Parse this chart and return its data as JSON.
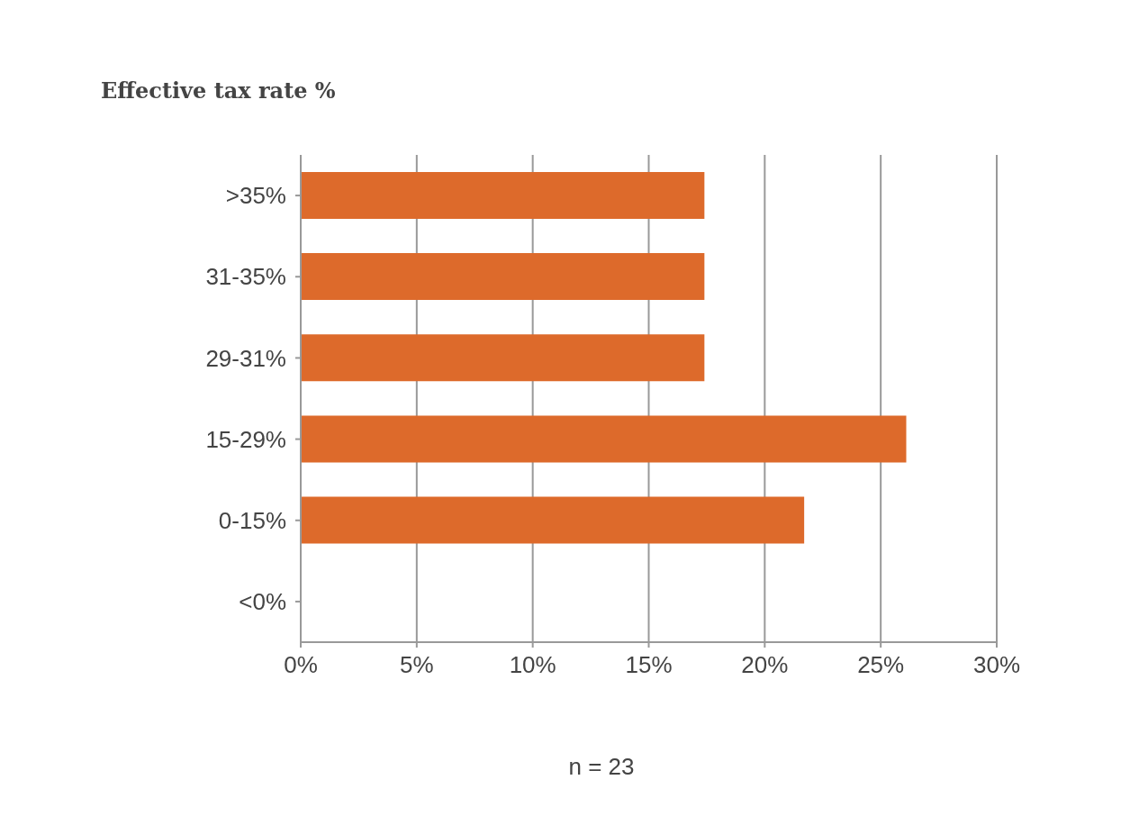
{
  "chart_data": {
    "type": "bar",
    "orientation": "horizontal",
    "title": "Effective tax rate %",
    "categories": [
      ">35%",
      "31-35%",
      "29-31%",
      "15-29%",
      "0-15%",
      "<0%"
    ],
    "values": [
      17.4,
      17.4,
      17.4,
      26.1,
      21.7,
      0
    ],
    "color": "#dd6a2b",
    "xlim": [
      0,
      30
    ],
    "xticks": [
      {
        "value": 0,
        "label": "0%"
      },
      {
        "value": 5,
        "label": "5%"
      },
      {
        "value": 10,
        "label": "10%"
      },
      {
        "value": 15,
        "label": "15%"
      },
      {
        "value": 20,
        "label": "20%"
      },
      {
        "value": 25,
        "label": "25%"
      },
      {
        "value": 30,
        "label": "30%"
      }
    ],
    "grid": "x",
    "annotations": [
      "n = 23"
    ]
  }
}
